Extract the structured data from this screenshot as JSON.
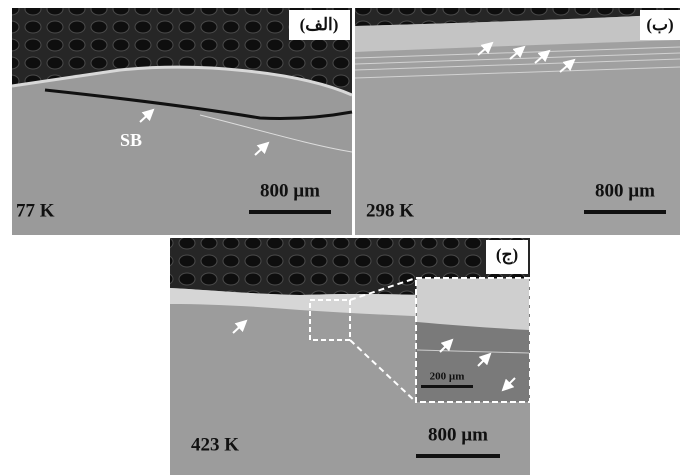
{
  "panels": [
    {
      "label": "(الف)",
      "temperature": "77 K",
      "scale_bar": "800 µm",
      "annotation": "SB"
    },
    {
      "label": "(ب)",
      "temperature": "298 K",
      "scale_bar": "800 µm"
    },
    {
      "label": "(ج)",
      "temperature": "423 K",
      "scale_bar": "800 µm",
      "inset_scale_bar": "200 µm"
    }
  ]
}
